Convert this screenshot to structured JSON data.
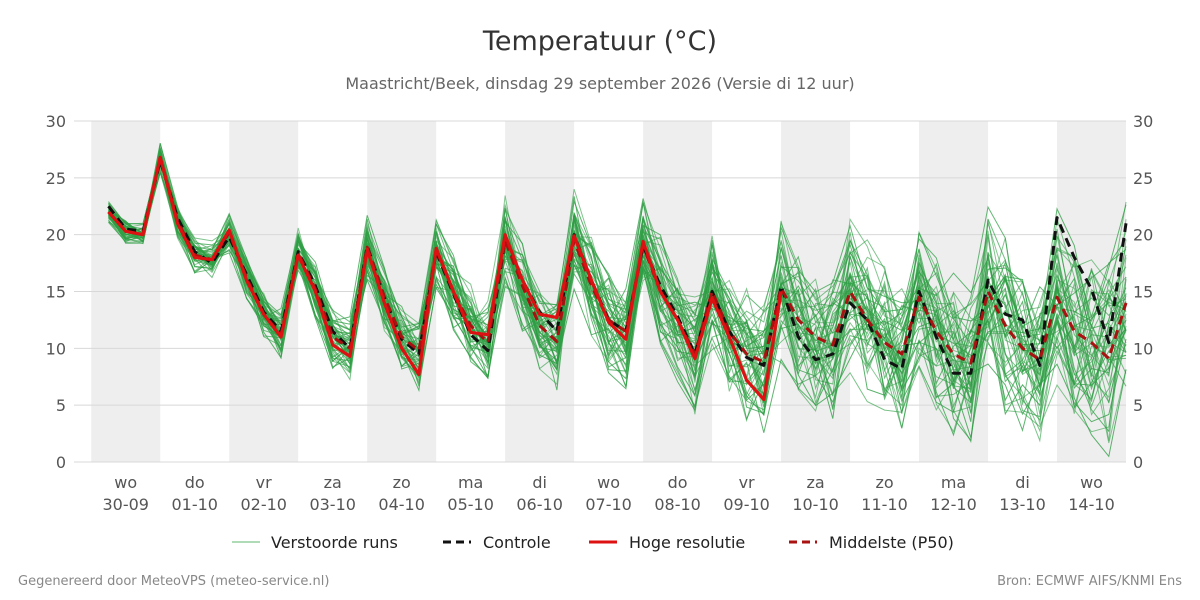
{
  "chart_data": {
    "type": "line",
    "title": "Temperatuur (°C)",
    "subtitle": "Maastricht/Beek, dinsdag 29 september 2026 (Versie di 12 uur)",
    "ylim": [
      0,
      30
    ],
    "yticks": [
      0,
      5,
      10,
      15,
      20,
      25,
      30
    ],
    "x_range_days": [
      -0.75,
      14.5
    ],
    "day_labels": [
      {
        "day": "wo",
        "date": "30-09"
      },
      {
        "day": "do",
        "date": "01-10"
      },
      {
        "day": "vr",
        "date": "02-10"
      },
      {
        "day": "za",
        "date": "03-10"
      },
      {
        "day": "zo",
        "date": "04-10"
      },
      {
        "day": "ma",
        "date": "05-10"
      },
      {
        "day": "di",
        "date": "06-10"
      },
      {
        "day": "wo",
        "date": "07-10"
      },
      {
        "day": "do",
        "date": "08-10"
      },
      {
        "day": "vr",
        "date": "09-10"
      },
      {
        "day": "za",
        "date": "10-10"
      },
      {
        "day": "zo",
        "date": "11-10"
      },
      {
        "day": "ma",
        "date": "12-10"
      },
      {
        "day": "di",
        "date": "13-10"
      },
      {
        "day": "wo",
        "date": "14-10"
      }
    ],
    "shaded_day_indices": [
      0,
      2,
      4,
      6,
      8,
      10,
      12,
      14
    ],
    "grid": true,
    "legend_position": "bottom",
    "series": [
      {
        "name": "Hoge resolutie",
        "style": "solid",
        "color": "#dd1111",
        "x": [
          -0.25,
          0,
          0.25,
          0.5,
          0.75,
          1,
          1.25,
          1.5,
          1.75,
          2,
          2.25,
          2.5,
          2.75,
          3,
          3.25,
          3.5,
          3.75,
          4,
          4.25,
          4.5,
          4.75,
          5,
          5.25,
          5.5,
          5.75,
          6,
          6.25,
          6.5,
          6.75,
          7,
          7.25,
          7.5,
          7.75,
          8,
          8.25,
          8.5,
          8.75,
          9,
          9.25,
          9.5
        ],
        "y": [
          22,
          20.3,
          20,
          26.8,
          21,
          18,
          17.8,
          20.4,
          16,
          13,
          11,
          18.2,
          15,
          10.3,
          9.3,
          18.7,
          14,
          10,
          7.7,
          18.8,
          15,
          11.4,
          11.2,
          20,
          16,
          13,
          12.7,
          19.9,
          16,
          12.3,
          10.8,
          19.4,
          15,
          12.5,
          9.1,
          14.4,
          11,
          7.2,
          5.5,
          15
        ]
      },
      {
        "name": "Controle",
        "style": "dashed",
        "color": "#111111",
        "x": [
          -0.25,
          0,
          0.25,
          0.5,
          0.75,
          1,
          1.25,
          1.5,
          1.75,
          2,
          2.25,
          2.5,
          2.75,
          3,
          3.25,
          3.5,
          3.75,
          4,
          4.25,
          4.5,
          4.75,
          5,
          5.25,
          5.5,
          5.75,
          6,
          6.25,
          6.5,
          6.75,
          7,
          7.25,
          7.5,
          7.75,
          8,
          8.25,
          8.5,
          8.75,
          9,
          9.25,
          9.5,
          9.75,
          10,
          10.25,
          10.5,
          10.75,
          11,
          11.25,
          11.5,
          11.75,
          12,
          12.25,
          12.5,
          12.75,
          13,
          13.25,
          13.5,
          13.75,
          14,
          14.25,
          14.5
        ],
        "y": [
          22.5,
          20.5,
          20.3,
          26.5,
          21.5,
          18.5,
          17.5,
          19.8,
          16.5,
          13.2,
          11.5,
          18.5,
          15.5,
          11.5,
          10,
          19,
          14.5,
          10.8,
          9.5,
          18.5,
          14.8,
          11.2,
          9.8,
          19.5,
          16,
          13.2,
          11.5,
          20,
          16,
          12.5,
          11.5,
          19,
          15.5,
          12.8,
          9.5,
          15,
          11.5,
          9.2,
          8.5,
          15.5,
          11,
          9,
          9.5,
          14,
          12.5,
          9,
          8.2,
          15,
          11,
          7.8,
          7.8,
          16,
          13,
          12.5,
          8.5,
          21.5,
          18,
          15.2,
          10.5,
          21
        ]
      },
      {
        "name": "Middelste (P50)",
        "style": "dashed",
        "color": "#aa1111",
        "x": [
          -0.25,
          0,
          0.25,
          0.5,
          0.75,
          1,
          1.25,
          1.5,
          1.75,
          2,
          2.25,
          2.5,
          2.75,
          3,
          3.25,
          3.5,
          3.75,
          4,
          4.25,
          4.5,
          4.75,
          5,
          5.25,
          5.5,
          5.75,
          6,
          6.25,
          6.5,
          6.75,
          7,
          7.25,
          7.5,
          7.75,
          8,
          8.25,
          8.5,
          8.75,
          9,
          9.25,
          9.5,
          9.75,
          10,
          10.25,
          10.5,
          10.75,
          11,
          11.25,
          11.5,
          11.75,
          12,
          12.25,
          12.5,
          12.75,
          13,
          13.25,
          13.5,
          13.75,
          14,
          14.25,
          14.5
        ],
        "y": [
          22,
          20.3,
          20,
          26.8,
          21.2,
          18.2,
          17.8,
          20.2,
          16.2,
          13,
          11.2,
          18.4,
          15.2,
          11,
          10,
          18.9,
          14.5,
          11,
          9.8,
          18.7,
          15,
          12,
          10.5,
          19.5,
          15.5,
          12,
          10.6,
          19.5,
          15.5,
          12.5,
          11.5,
          19,
          15,
          12.5,
          9.5,
          15,
          11.5,
          9.5,
          8.8,
          15.3,
          12.5,
          11,
          10.3,
          15,
          12.5,
          10.5,
          9.5,
          14.5,
          11.5,
          9.5,
          8.7,
          15,
          12,
          10,
          9,
          14.5,
          11.5,
          10.5,
          9.1,
          14
        ]
      }
    ],
    "ensemble_series": {
      "name": "Verstoorde runs",
      "style": "solid",
      "color": "#2e9e44",
      "member_count": 50,
      "x_step_days": 0.25
    },
    "legend": [
      {
        "label": "Verstoorde runs",
        "style": "thin-solid",
        "color": "#5fb86d"
      },
      {
        "label": "Controle",
        "style": "dashed",
        "color": "#111111"
      },
      {
        "label": "Hoge resolutie",
        "style": "solid",
        "color": "#dd1111"
      },
      {
        "label": "Middelste (P50)",
        "style": "dashed",
        "color": "#aa1111"
      }
    ]
  },
  "footer": {
    "left": "Gegenereerd door MeteoVPS (meteo-service.nl)",
    "right": "Bron: ECMWF AIFS/KNMI Ens"
  }
}
